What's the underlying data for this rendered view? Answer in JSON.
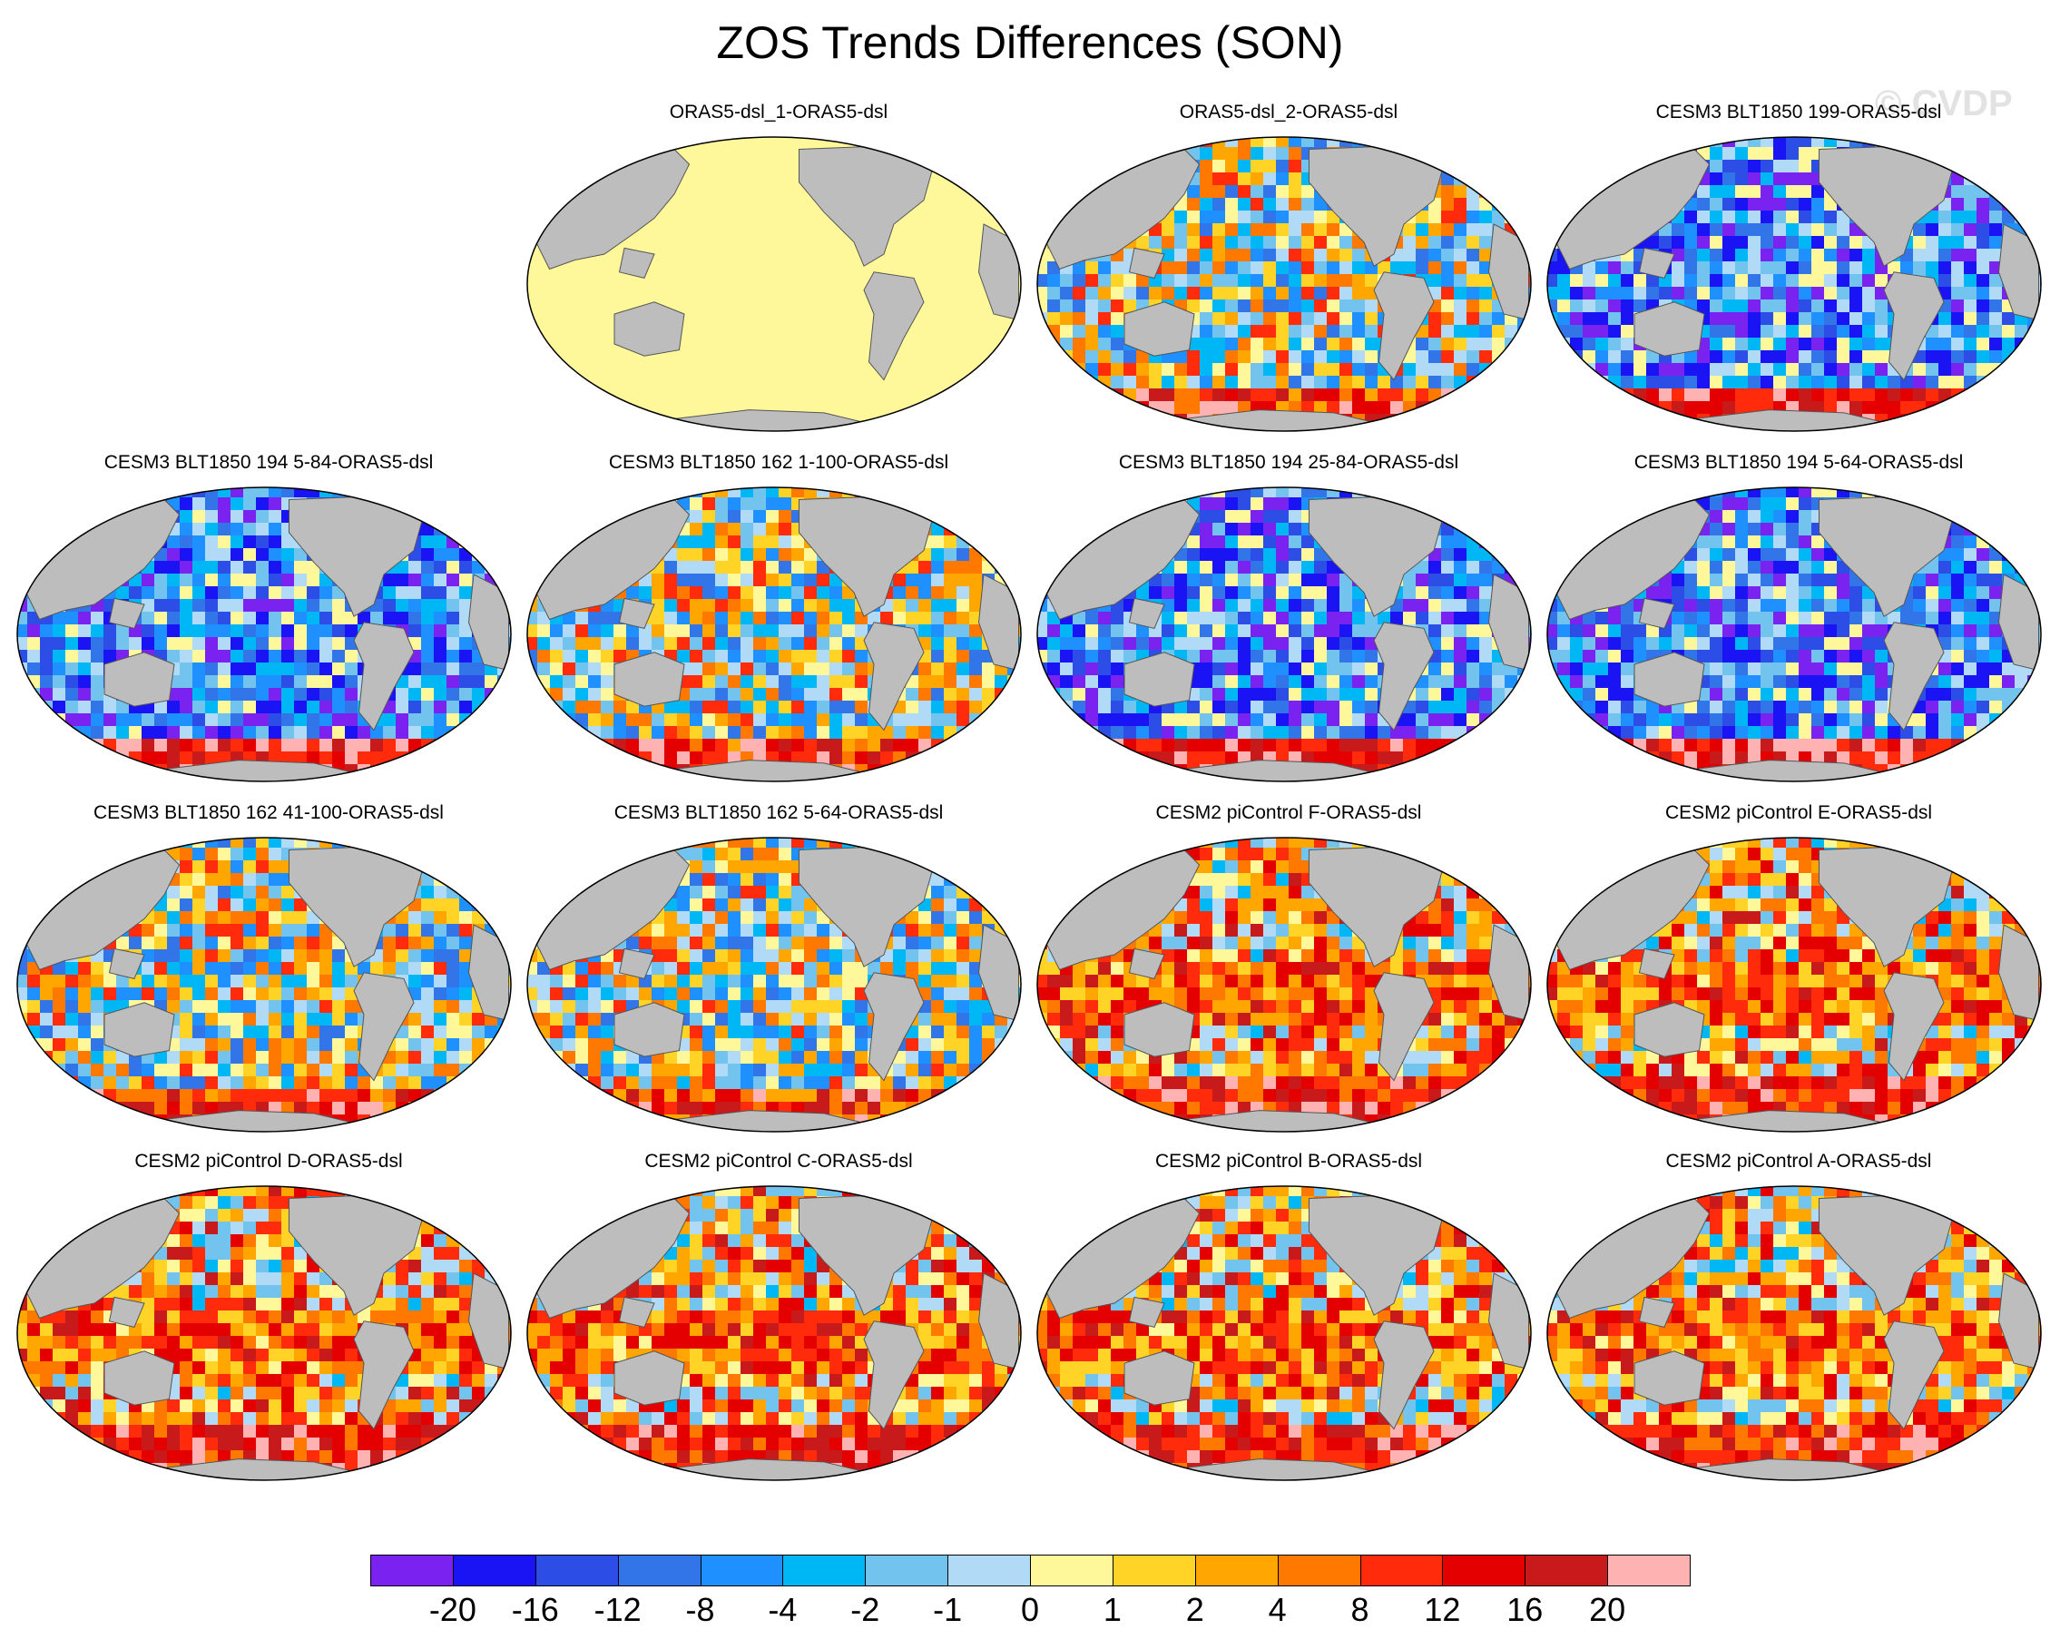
{
  "figure": {
    "title": "ZOS Trends Differences (SON)",
    "watermark": "© CVDP"
  },
  "colors": {
    "land": "#bdbdbd",
    "uniform_panel": "#fff89a",
    "scale": [
      "#7a22f0",
      "#1a14f4",
      "#2d4ee6",
      "#3275e8",
      "#1e90ff",
      "#00b7f5",
      "#72c4ee",
      "#b0daf5",
      "#fff89a",
      "#ffd426",
      "#ffa700",
      "#ff7800",
      "#ff2b0b",
      "#e40000",
      "#c81a1a",
      "#ffb2b2"
    ]
  },
  "panels": [
    {
      "id": "p1",
      "title": "ORAS5-dsl_1-ORAS5-dsl",
      "pattern": "uniform",
      "seed": 1
    },
    {
      "id": "p2",
      "title": "ORAS5-dsl_2-ORAS5-dsl",
      "pattern": "mixed",
      "seed": 2
    },
    {
      "id": "p3",
      "title": "CESM3 BLT1850 199-ORAS5-dsl",
      "pattern": "negative",
      "seed": 3
    },
    {
      "id": "p4",
      "title": "CESM3 BLT1850 194 5-84-ORAS5-dsl",
      "pattern": "negative",
      "seed": 4
    },
    {
      "id": "p5",
      "title": "CESM3 BLT1850 162 1-100-ORAS5-dsl",
      "pattern": "mixed",
      "seed": 5
    },
    {
      "id": "p6",
      "title": "CESM3 BLT1850 194 25-84-ORAS5-dsl",
      "pattern": "negative",
      "seed": 6
    },
    {
      "id": "p7",
      "title": "CESM3 BLT1850 194 5-64-ORAS5-dsl",
      "pattern": "negative",
      "seed": 7
    },
    {
      "id": "p8",
      "title": "CESM3 BLT1850 162 41-100-ORAS5-dsl",
      "pattern": "mixed",
      "seed": 8
    },
    {
      "id": "p9",
      "title": "CESM3 BLT1850 162 5-64-ORAS5-dsl",
      "pattern": "mixed",
      "seed": 9
    },
    {
      "id": "p10",
      "title": "CESM2 piControl F-ORAS5-dsl",
      "pattern": "positive",
      "seed": 10
    },
    {
      "id": "p11",
      "title": "CESM2 piControl E-ORAS5-dsl",
      "pattern": "positive",
      "seed": 11
    },
    {
      "id": "p12",
      "title": "CESM2 piControl D-ORAS5-dsl",
      "pattern": "positive",
      "seed": 12
    },
    {
      "id": "p13",
      "title": "CESM2 piControl C-ORAS5-dsl",
      "pattern": "positive",
      "seed": 13
    },
    {
      "id": "p14",
      "title": "CESM2 piControl B-ORAS5-dsl",
      "pattern": "positive",
      "seed": 14
    },
    {
      "id": "p15",
      "title": "CESM2 piControl A-ORAS5-dsl",
      "pattern": "positive",
      "seed": 15
    }
  ],
  "colorbar": {
    "labels": [
      "-20",
      "-16",
      "-12",
      "-8",
      "-4",
      "-2",
      "-1",
      "0",
      "1",
      "2",
      "4",
      "8",
      "12",
      "16",
      "20"
    ]
  }
}
